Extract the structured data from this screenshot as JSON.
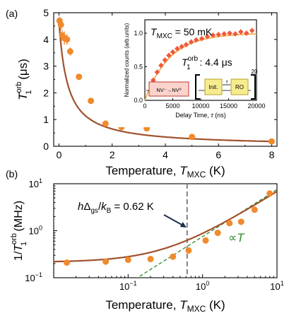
{
  "colors": {
    "marker": "#f08a2c",
    "fit": "#a0522d",
    "inset_marker": "#ef5a3c",
    "inset_fit": "#f2a93b",
    "dash_gray": "#808080",
    "dash_green": "#2e8b2e",
    "nv_box_fill": "#fbd3cc",
    "nv_box_stroke": "#c0392b",
    "seq_box_fill": "#f6ec8e",
    "seq_box_stroke": "#b8a22a"
  },
  "chart_data": [
    {
      "panel_label": "(a)",
      "type": "scatter",
      "xlabel_main": "Temperature, ",
      "xlabel_var": "T",
      "xlabel_sub": "MXC",
      "xlabel_unit": " (K)",
      "ylabel_var": "T",
      "ylabel_sub": "1",
      "ylabel_sup": "orb",
      "ylabel_unit": " (μs)",
      "xlim": [
        -0.2,
        8.2
      ],
      "ylim": [
        0,
        5
      ],
      "x_ticks": [
        "0",
        "2",
        "4",
        "6",
        "8"
      ],
      "y_ticks": [
        "0",
        "1",
        "2",
        "3",
        "4",
        "5"
      ],
      "points": [
        {
          "x": 0.02,
          "y": 4.7,
          "err": 0.15
        },
        {
          "x": 0.07,
          "y": 4.55,
          "err": 0.2
        },
        {
          "x": 0.12,
          "y": 4.15,
          "err": 0.2
        },
        {
          "x": 0.2,
          "y": 4.05,
          "err": 0.25
        },
        {
          "x": 0.3,
          "y": 4.0,
          "err": 0.2
        },
        {
          "x": 0.42,
          "y": 3.55,
          "err": 0.15
        },
        {
          "x": 0.75,
          "y": 2.6,
          "err": 0.12
        },
        {
          "x": 1.2,
          "y": 1.7,
          "err": 0.1
        },
        {
          "x": 1.75,
          "y": 0.85,
          "err": 0.06
        },
        {
          "x": 2.35,
          "y": 0.72,
          "err": 0.05
        },
        {
          "x": 3.3,
          "y": 0.67,
          "err": 0.04
        },
        {
          "x": 5.0,
          "y": 0.35,
          "err": 0.03
        },
        {
          "x": 8.0,
          "y": 0.18,
          "err": 0.02
        }
      ],
      "fit_model": {
        "a": 0.214,
        "b": 0.0,
        "c": 0.665
      }
    },
    {
      "type": "scatter",
      "inset": true,
      "text_temp_var": "T",
      "text_temp_sub": "MXC",
      "text_temp_value": " = 50 mK",
      "text_t1_var": "T",
      "text_t1_sub": "1",
      "text_t1_sup": "orb",
      "text_t1_value": " : 4.4 μs",
      "xlabel": "Delay Time, ",
      "xlabel_var": "τ",
      "xlabel_unit": " (ns)",
      "ylabel": "Normalized counts (arb.units)",
      "xlim": [
        0,
        20000
      ],
      "ylim": [
        0,
        1.2
      ],
      "x_ticks": [
        "0",
        "5000",
        "10000",
        "15000",
        "20000"
      ],
      "y_ticks": [
        "0.0",
        "0.5",
        "1.0"
      ],
      "points": [
        {
          "x": 1500,
          "y": 0.3
        },
        {
          "x": 2200,
          "y": 0.42
        },
        {
          "x": 2900,
          "y": 0.52
        },
        {
          "x": 3600,
          "y": 0.6
        },
        {
          "x": 4300,
          "y": 0.67
        },
        {
          "x": 5000,
          "y": 0.72
        },
        {
          "x": 5800,
          "y": 0.77
        },
        {
          "x": 6600,
          "y": 0.8
        },
        {
          "x": 7400,
          "y": 0.83
        },
        {
          "x": 8300,
          "y": 0.87
        },
        {
          "x": 9200,
          "y": 0.9
        },
        {
          "x": 10200,
          "y": 0.92
        },
        {
          "x": 11200,
          "y": 0.95
        },
        {
          "x": 12200,
          "y": 0.97
        },
        {
          "x": 13200,
          "y": 0.98
        },
        {
          "x": 14200,
          "y": 0.99
        },
        {
          "x": 15200,
          "y": 1.0
        },
        {
          "x": 16200,
          "y": 0.99
        },
        {
          "x": 17200,
          "y": 1.02
        },
        {
          "x": 18200,
          "y": 1.0
        },
        {
          "x": 19200,
          "y": 1.04
        }
      ],
      "fit_model": {
        "a": 1.0,
        "tau": 4400
      },
      "seq": {
        "nv": "NV⁻→NV⁰",
        "init": "Init.",
        "tau": "τ",
        "ro": "RO",
        "repeat": "20"
      }
    },
    {
      "panel_label": "(b)",
      "type": "scatter",
      "xlabel_main": "Temperature, ",
      "xlabel_var": "T",
      "xlabel_sub": "MXC",
      "xlabel_unit": " (K)",
      "ylabel_prefix": "1/",
      "ylabel_var": "T",
      "ylabel_sub": "1",
      "ylabel_sup": "orb",
      "ylabel_unit": " (MHz)",
      "x_scale": "log",
      "y_scale": "log",
      "xlim": [
        0.01,
        10
      ],
      "ylim": [
        0.1,
        10
      ],
      "x_ticks": [
        {
          "value": 0.1,
          "base": "10",
          "exp": "−1"
        },
        {
          "value": 1,
          "base": "10",
          "exp": "0"
        },
        {
          "value": 10,
          "base": "10",
          "exp": "1"
        }
      ],
      "y_ticks": [
        {
          "value": 0.1,
          "base": "10",
          "exp": "−1"
        },
        {
          "value": 1,
          "base": "10",
          "exp": "0"
        },
        {
          "value": 10,
          "base": "10",
          "exp": "1"
        }
      ],
      "points": [
        {
          "x": 0.015,
          "y": 0.21
        },
        {
          "x": 0.05,
          "y": 0.22
        },
        {
          "x": 0.1,
          "y": 0.24
        },
        {
          "x": 0.2,
          "y": 0.25
        },
        {
          "x": 0.4,
          "y": 0.28
        },
        {
          "x": 0.65,
          "y": 0.38
        },
        {
          "x": 1.1,
          "y": 0.62
        },
        {
          "x": 1.6,
          "y": 0.9
        },
        {
          "x": 2.3,
          "y": 1.45
        },
        {
          "x": 3.3,
          "y": 1.55
        },
        {
          "x": 5.0,
          "y": 2.8
        },
        {
          "x": 8.0,
          "y": 6.2
        }
      ],
      "gap_text": {
        "h": "h",
        "delta": "Δ",
        "sub_gs": "gs",
        "slash": "/",
        "k": "k",
        "sub_b": "B",
        "value": " = 0.62 K"
      },
      "gap_value": 0.62,
      "prop_text": {
        "prefix": "∝",
        "var": "T"
      },
      "linear_coeff": 0.75,
      "fit_model": {
        "a": 0.214,
        "c": 0.665
      }
    }
  ]
}
